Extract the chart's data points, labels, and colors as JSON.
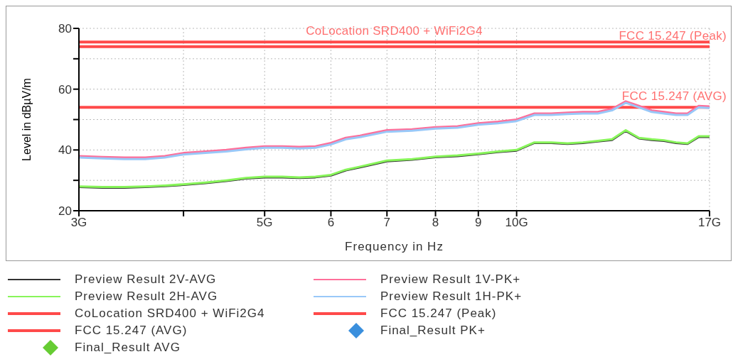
{
  "chart_data": {
    "type": "line",
    "xlabel": "Frequency in Hz",
    "ylabel": "Level in dBµV/m",
    "log": "x",
    "grid": true,
    "legend": "bottom",
    "marker": "none",
    "line_style": "solid",
    "x": [
      3,
      3.2,
      3.4,
      3.6,
      3.8,
      4,
      4.25,
      4.5,
      4.75,
      5,
      5.25,
      5.5,
      5.75,
      6,
      6.25,
      6.5,
      7,
      7.5,
      8,
      8.5,
      9,
      9.5,
      10,
      10.5,
      11,
      11.5,
      12,
      12.5,
      13,
      13.5,
      14,
      14.5,
      15,
      15.5,
      16,
      16.5,
      17
    ],
    "xlim": [
      3,
      17
    ],
    "xticks": [
      {
        "value": 3,
        "label": "3G"
      },
      {
        "value": 4,
        "label": null
      },
      {
        "value": 5,
        "label": "5G"
      },
      6,
      7,
      8,
      9,
      {
        "value": 10,
        "label": "10G"
      },
      {
        "value": 17,
        "label": "17G"
      }
    ],
    "ylim": [
      20,
      80
    ],
    "yticks": [
      20,
      {
        "value": 30,
        "label": null
      },
      40,
      {
        "value": 50,
        "label": null
      },
      60,
      {
        "value": 70,
        "label": null
      },
      80
    ],
    "series": [
      {
        "name": "Preview Result 2V-AVG",
        "color": "#333333",
        "values": [
          27.8,
          27.6,
          27.6,
          27.8,
          28.1,
          28.5,
          29.1,
          29.8,
          30.6,
          31,
          31,
          30.8,
          31,
          31.6,
          33.3,
          34.3,
          36.3,
          36.8,
          37.6,
          38,
          38.6,
          39.3,
          39.8,
          42.3,
          42.3,
          42,
          42.3,
          42.8,
          43.3,
          46.3,
          43.8,
          43.3,
          43,
          42.3,
          42,
          44.3,
          44.3
        ]
      },
      {
        "name": "Preview Result 1V-PK+",
        "color": "#ff6f9a",
        "values": [
          38,
          37.7,
          37.5,
          37.5,
          38,
          39,
          39.5,
          40,
          40.7,
          41.2,
          41.2,
          41,
          41.2,
          42.3,
          44,
          44.7,
          46.5,
          46.8,
          47.5,
          47.8,
          48.8,
          49.3,
          50,
          52,
          52,
          52.3,
          52.5,
          52.5,
          53.5,
          56,
          54.5,
          53,
          52.5,
          52,
          52,
          54.5,
          54.3
        ]
      },
      {
        "name": "Preview Result 2H-AVG",
        "color": "#88f55a",
        "values": [
          28,
          27.8,
          27.8,
          28,
          28.3,
          28.7,
          29.3,
          30,
          30.8,
          31.2,
          31.2,
          31,
          31.2,
          31.8,
          33.5,
          34.5,
          36.5,
          37,
          37.8,
          38.2,
          38.8,
          39.5,
          40,
          42.5,
          42.5,
          42.2,
          42.5,
          43,
          43.5,
          46.5,
          44,
          43.5,
          43.2,
          42.5,
          42.2,
          44.5,
          44.5
        ]
      },
      {
        "name": "Preview Result 1H-PK+",
        "color": "#99c8f8",
        "values": [
          37.5,
          37.2,
          37,
          37,
          37.5,
          38.5,
          39,
          39.5,
          40.2,
          40.7,
          40.7,
          40.5,
          40.7,
          41.8,
          43.5,
          44.2,
          46,
          46.3,
          47,
          47.3,
          48.3,
          48.8,
          49.5,
          51.5,
          51.5,
          51.8,
          52,
          52,
          53,
          55.5,
          54,
          52.5,
          52,
          51.5,
          51.5,
          54,
          53.8
        ]
      },
      {
        "name": "Final_Result PK+",
        "type": "scatter",
        "marker": "diamond",
        "color": "#3a8fdd",
        "values": [
          null,
          null,
          null,
          null,
          null,
          null,
          null,
          null,
          null,
          null,
          null,
          null,
          null,
          null,
          null,
          null,
          null,
          null,
          null,
          null,
          null,
          null,
          null,
          null,
          null,
          null,
          null,
          null,
          null,
          null,
          null,
          null,
          null,
          null,
          null,
          null,
          null
        ]
      },
      {
        "name": "Final_Result AVG",
        "type": "scatter",
        "marker": "diamond",
        "color": "#66cc33",
        "values": [
          null,
          null,
          null,
          null,
          null,
          null,
          null,
          null,
          null,
          null,
          null,
          null,
          null,
          null,
          null,
          null,
          null,
          null,
          null,
          null,
          null,
          null,
          null,
          null,
          null,
          null,
          null,
          null,
          null,
          null,
          null,
          null,
          null,
          null,
          null,
          null,
          null
        ]
      }
    ],
    "ref_lines": [
      {
        "axis": "y",
        "value": 75.5,
        "label": "CoLocation SRD400 + WiFi2G4",
        "color": "#ff4a4a"
      },
      {
        "axis": "y",
        "value": 74,
        "label": "FCC 15.247 (Peak)",
        "color": "#ff4a4a"
      },
      {
        "axis": "y",
        "value": 54,
        "label": "FCC 15.247 (AVG)",
        "color": "#ff4a4a"
      }
    ]
  }
}
